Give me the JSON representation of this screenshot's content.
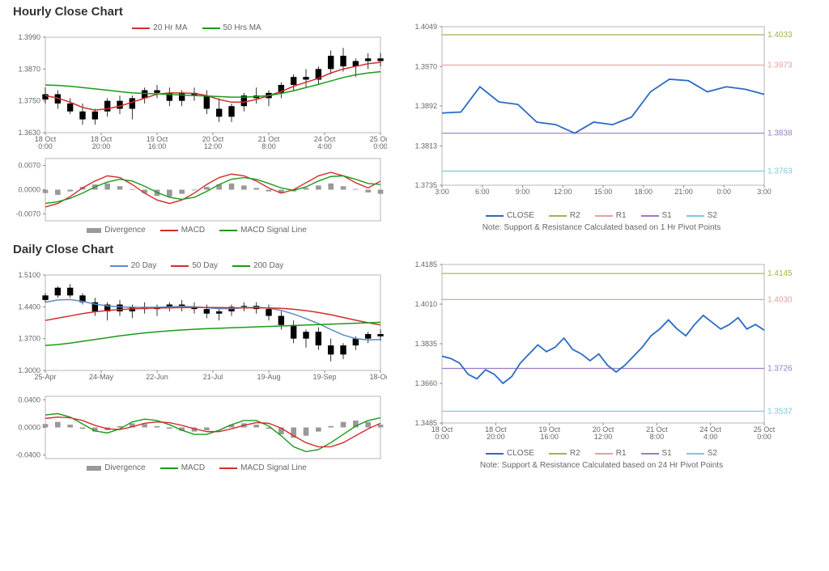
{
  "hourly": {
    "title": "Hourly Close Chart",
    "price": {
      "type": "candlestick+line",
      "legend": [
        {
          "label": "20 Hr MA",
          "color": "#d22d2d"
        },
        {
          "label": "50 Hrs MA",
          "color": "#1a9b1a"
        }
      ],
      "ylim": [
        1.363,
        1.399
      ],
      "yticks": [
        1.363,
        1.375,
        1.387,
        1.399
      ],
      "xticks": [
        "18 Oct\n0:00",
        "18 Oct\n20:00",
        "19 Oct\n16:00",
        "20 Oct\n12:00",
        "21 Oct\n8:00",
        "24 Oct\n4:00",
        "25 Oct\n0:00"
      ],
      "candles": [
        {
          "x": 0,
          "o": 1.3755,
          "h": 1.38,
          "l": 1.374,
          "c": 1.3775
        },
        {
          "x": 1,
          "o": 1.3775,
          "h": 1.379,
          "l": 1.372,
          "c": 1.374
        },
        {
          "x": 2,
          "o": 1.374,
          "h": 1.376,
          "l": 1.37,
          "c": 1.371
        },
        {
          "x": 3,
          "o": 1.371,
          "h": 1.374,
          "l": 1.366,
          "c": 1.368
        },
        {
          "x": 4,
          "o": 1.368,
          "h": 1.372,
          "l": 1.366,
          "c": 1.371
        },
        {
          "x": 5,
          "o": 1.371,
          "h": 1.376,
          "l": 1.369,
          "c": 1.375
        },
        {
          "x": 6,
          "o": 1.375,
          "h": 1.377,
          "l": 1.37,
          "c": 1.372
        },
        {
          "x": 7,
          "o": 1.372,
          "h": 1.377,
          "l": 1.368,
          "c": 1.376
        },
        {
          "x": 8,
          "o": 1.376,
          "h": 1.38,
          "l": 1.374,
          "c": 1.379
        },
        {
          "x": 9,
          "o": 1.379,
          "h": 1.381,
          "l": 1.376,
          "c": 1.378
        },
        {
          "x": 10,
          "o": 1.378,
          "h": 1.38,
          "l": 1.373,
          "c": 1.375
        },
        {
          "x": 11,
          "o": 1.375,
          "h": 1.379,
          "l": 1.373,
          "c": 1.378
        },
        {
          "x": 12,
          "o": 1.378,
          "h": 1.38,
          "l": 1.375,
          "c": 1.377
        },
        {
          "x": 13,
          "o": 1.377,
          "h": 1.379,
          "l": 1.37,
          "c": 1.372
        },
        {
          "x": 14,
          "o": 1.372,
          "h": 1.376,
          "l": 1.367,
          "c": 1.369
        },
        {
          "x": 15,
          "o": 1.369,
          "h": 1.374,
          "l": 1.367,
          "c": 1.373
        },
        {
          "x": 16,
          "o": 1.373,
          "h": 1.378,
          "l": 1.371,
          "c": 1.377
        },
        {
          "x": 17,
          "o": 1.377,
          "h": 1.38,
          "l": 1.374,
          "c": 1.376
        },
        {
          "x": 18,
          "o": 1.376,
          "h": 1.379,
          "l": 1.373,
          "c": 1.378
        },
        {
          "x": 19,
          "o": 1.378,
          "h": 1.382,
          "l": 1.376,
          "c": 1.381
        },
        {
          "x": 20,
          "o": 1.381,
          "h": 1.385,
          "l": 1.379,
          "c": 1.384
        },
        {
          "x": 21,
          "o": 1.384,
          "h": 1.387,
          "l": 1.38,
          "c": 1.383
        },
        {
          "x": 22,
          "o": 1.383,
          "h": 1.388,
          "l": 1.381,
          "c": 1.387
        },
        {
          "x": 23,
          "o": 1.387,
          "h": 1.394,
          "l": 1.385,
          "c": 1.392
        },
        {
          "x": 24,
          "o": 1.392,
          "h": 1.395,
          "l": 1.386,
          "c": 1.388
        },
        {
          "x": 25,
          "o": 1.388,
          "h": 1.391,
          "l": 1.384,
          "c": 1.39
        },
        {
          "x": 26,
          "o": 1.39,
          "h": 1.393,
          "l": 1.387,
          "c": 1.391
        },
        {
          "x": 27,
          "o": 1.391,
          "h": 1.393,
          "l": 1.388,
          "c": 1.39
        }
      ],
      "ma20": [
        1.377,
        1.376,
        1.3745,
        1.3725,
        1.3715,
        1.372,
        1.373,
        1.3745,
        1.376,
        1.3775,
        1.378,
        1.378,
        1.3778,
        1.377,
        1.3755,
        1.3745,
        1.3745,
        1.3755,
        1.377,
        1.3785,
        1.3805,
        1.382,
        1.3835,
        1.3855,
        1.387,
        1.388,
        1.389,
        1.3895
      ],
      "ma50": [
        1.381,
        1.3808,
        1.3805,
        1.38,
        1.3795,
        1.379,
        1.3785,
        1.378,
        1.3778,
        1.3776,
        1.3774,
        1.3772,
        1.377,
        1.3768,
        1.3766,
        1.3764,
        1.3764,
        1.3766,
        1.377,
        1.3778,
        1.3788,
        1.38,
        1.3812,
        1.3825,
        1.3838,
        1.3848,
        1.3855,
        1.386
      ],
      "ma20_color": "#d22d2d",
      "ma50_color": "#1a9b1a",
      "candle_color": "#000000"
    },
    "macd": {
      "type": "macd",
      "legend": [
        {
          "label": "Divergence",
          "color": "#999999",
          "shape": "bar"
        },
        {
          "label": "MACD",
          "color": "#d22d2d",
          "shape": "line"
        },
        {
          "label": "MACD Signal Line",
          "color": "#1a9b1a",
          "shape": "line"
        }
      ],
      "ylim": [
        -0.009,
        0.009
      ],
      "yticks": [
        -0.007,
        0.0,
        0.007
      ],
      "divergence": [
        -0.001,
        -0.0015,
        -0.0005,
        0.0008,
        0.0015,
        0.0018,
        0.001,
        0.0002,
        -0.001,
        -0.0018,
        -0.002,
        -0.0012,
        -0.0002,
        0.0008,
        0.0015,
        0.0018,
        0.0012,
        0.0005,
        -0.0005,
        -0.001,
        -0.0005,
        0.0005,
        0.0012,
        0.0018,
        0.001,
        0.0002,
        -0.0008,
        -0.0012
      ],
      "macd": [
        -0.005,
        -0.004,
        -0.002,
        0.0005,
        0.0025,
        0.004,
        0.0035,
        0.0015,
        -0.001,
        -0.003,
        -0.004,
        -0.003,
        -0.001,
        0.0015,
        0.0035,
        0.0045,
        0.004,
        0.0025,
        0.0005,
        -0.001,
        0.0,
        0.002,
        0.004,
        0.005,
        0.004,
        0.002,
        0.0005,
        0.0025
      ],
      "signal": [
        -0.004,
        -0.0035,
        -0.0025,
        -0.001,
        0.0008,
        0.0022,
        0.003,
        0.0025,
        0.001,
        -0.0008,
        -0.0022,
        -0.0028,
        -0.0022,
        -0.0005,
        0.0015,
        0.003,
        0.0035,
        0.003,
        0.0018,
        0.0005,
        -0.0002,
        0.0008,
        0.0025,
        0.0038,
        0.004,
        0.003,
        0.0018,
        0.0015
      ],
      "bar_color": "#999999",
      "macd_color": "#d22d2d",
      "signal_color": "#1a9b1a"
    },
    "sr": {
      "type": "line+levels",
      "legend": [
        {
          "label": "CLOSE",
          "color": "#2a6bc4"
        },
        {
          "label": "R2",
          "color": "#9db54c"
        },
        {
          "label": "R1",
          "color": "#e6a0a0"
        },
        {
          "label": "S1",
          "color": "#9b7bc4"
        },
        {
          "label": "S2",
          "color": "#7cc9d9"
        }
      ],
      "ylim": [
        1.3735,
        1.4049
      ],
      "yticks": [
        1.3735,
        1.3813,
        1.3892,
        1.397,
        1.4049
      ],
      "xticks": [
        "3:00",
        "6:00",
        "9:00",
        "12:00",
        "15:00",
        "18:00",
        "21:00",
        "0:00",
        "3:00"
      ],
      "levels": {
        "R2": 1.4033,
        "R1": 1.3973,
        "S1": 1.3838,
        "S2": 1.3763
      },
      "level_colors": {
        "R2": "#9db54c",
        "R1": "#e6a0a0",
        "S1": "#9b7bc4",
        "S2": "#7cc9d9"
      },
      "close": [
        1.3878,
        1.388,
        1.393,
        1.39,
        1.3895,
        1.386,
        1.3855,
        1.3838,
        1.386,
        1.3855,
        1.387,
        1.392,
        1.3945,
        1.3942,
        1.392,
        1.393,
        1.3925,
        1.3915
      ],
      "close_color": "#2a6bc4",
      "note": "Note: Support & Resistance Calculated based on 1 Hr Pivot Points"
    }
  },
  "daily": {
    "title": "Daily Close Chart",
    "price": {
      "type": "candlestick+line",
      "legend": [
        {
          "label": "20 Day",
          "color": "#5a8bc4"
        },
        {
          "label": "50 Day",
          "color": "#d22d2d"
        },
        {
          "label": "200 Day",
          "color": "#1a9b1a"
        }
      ],
      "ylim": [
        1.3,
        1.51
      ],
      "yticks": [
        1.3,
        1.37,
        1.44,
        1.51
      ],
      "xticks": [
        "25-Apr",
        "24-May",
        "22-Jun",
        "21-Jul",
        "19-Aug",
        "19-Sep",
        "18-Oct"
      ],
      "candles": [
        {
          "x": 0,
          "o": 1.455,
          "h": 1.47,
          "l": 1.45,
          "c": 1.465
        },
        {
          "x": 1,
          "o": 1.465,
          "h": 1.485,
          "l": 1.46,
          "c": 1.482
        },
        {
          "x": 2,
          "o": 1.482,
          "h": 1.49,
          "l": 1.46,
          "c": 1.465
        },
        {
          "x": 3,
          "o": 1.465,
          "h": 1.47,
          "l": 1.445,
          "c": 1.45
        },
        {
          "x": 4,
          "o": 1.45,
          "h": 1.46,
          "l": 1.42,
          "c": 1.43
        },
        {
          "x": 5,
          "o": 1.43,
          "h": 1.45,
          "l": 1.41,
          "c": 1.445
        },
        {
          "x": 6,
          "o": 1.445,
          "h": 1.455,
          "l": 1.42,
          "c": 1.43
        },
        {
          "x": 7,
          "o": 1.43,
          "h": 1.445,
          "l": 1.415,
          "c": 1.44
        },
        {
          "x": 8,
          "o": 1.44,
          "h": 1.45,
          "l": 1.425,
          "c": 1.435
        },
        {
          "x": 9,
          "o": 1.435,
          "h": 1.445,
          "l": 1.42,
          "c": 1.44
        },
        {
          "x": 10,
          "o": 1.44,
          "h": 1.45,
          "l": 1.43,
          "c": 1.445
        },
        {
          "x": 11,
          "o": 1.445,
          "h": 1.455,
          "l": 1.43,
          "c": 1.44
        },
        {
          "x": 12,
          "o": 1.44,
          "h": 1.45,
          "l": 1.425,
          "c": 1.435
        },
        {
          "x": 13,
          "o": 1.435,
          "h": 1.445,
          "l": 1.415,
          "c": 1.425
        },
        {
          "x": 14,
          "o": 1.425,
          "h": 1.435,
          "l": 1.41,
          "c": 1.43
        },
        {
          "x": 15,
          "o": 1.43,
          "h": 1.445,
          "l": 1.42,
          "c": 1.44
        },
        {
          "x": 16,
          "o": 1.44,
          "h": 1.45,
          "l": 1.43,
          "c": 1.442
        },
        {
          "x": 17,
          "o": 1.442,
          "h": 1.45,
          "l": 1.425,
          "c": 1.435
        },
        {
          "x": 18,
          "o": 1.435,
          "h": 1.445,
          "l": 1.41,
          "c": 1.42
        },
        {
          "x": 19,
          "o": 1.42,
          "h": 1.43,
          "l": 1.39,
          "c": 1.4
        },
        {
          "x": 20,
          "o": 1.4,
          "h": 1.41,
          "l": 1.36,
          "c": 1.37
        },
        {
          "x": 21,
          "o": 1.37,
          "h": 1.39,
          "l": 1.35,
          "c": 1.385
        },
        {
          "x": 22,
          "o": 1.385,
          "h": 1.395,
          "l": 1.345,
          "c": 1.355
        },
        {
          "x": 23,
          "o": 1.355,
          "h": 1.37,
          "l": 1.32,
          "c": 1.335
        },
        {
          "x": 24,
          "o": 1.335,
          "h": 1.36,
          "l": 1.325,
          "c": 1.355
        },
        {
          "x": 25,
          "o": 1.355,
          "h": 1.375,
          "l": 1.345,
          "c": 1.37
        },
        {
          "x": 26,
          "o": 1.37,
          "h": 1.385,
          "l": 1.36,
          "c": 1.38
        },
        {
          "x": 27,
          "o": 1.38,
          "h": 1.39,
          "l": 1.365,
          "c": 1.375
        }
      ],
      "ma20": [
        1.45,
        1.455,
        1.456,
        1.452,
        1.446,
        1.442,
        1.44,
        1.439,
        1.4385,
        1.439,
        1.44,
        1.441,
        1.44,
        1.438,
        1.436,
        1.436,
        1.438,
        1.439,
        1.437,
        1.432,
        1.424,
        1.414,
        1.403,
        1.39,
        1.378,
        1.37,
        1.367,
        1.368
      ],
      "ma50": [
        1.41,
        1.415,
        1.42,
        1.425,
        1.429,
        1.432,
        1.434,
        1.4355,
        1.4365,
        1.4372,
        1.4378,
        1.4382,
        1.4385,
        1.4385,
        1.4383,
        1.438,
        1.4378,
        1.4378,
        1.4375,
        1.4365,
        1.4345,
        1.4315,
        1.4275,
        1.4225,
        1.4165,
        1.4105,
        1.405,
        1.4
      ],
      "ma200": [
        1.355,
        1.357,
        1.36,
        1.364,
        1.368,
        1.372,
        1.376,
        1.3795,
        1.3825,
        1.385,
        1.3872,
        1.389,
        1.3905,
        1.3918,
        1.3928,
        1.3938,
        1.3948,
        1.3958,
        1.3968,
        1.3978,
        1.3988,
        1.3998,
        1.4008,
        1.4018,
        1.4028,
        1.4038,
        1.4048,
        1.4058
      ],
      "ma20_color": "#5a8bc4",
      "ma50_color": "#d22d2d",
      "ma200_color": "#1a9b1a",
      "candle_color": "#000000"
    },
    "macd": {
      "type": "macd",
      "legend": [
        {
          "label": "Divergence",
          "color": "#999999",
          "shape": "bar"
        },
        {
          "label": "MACD",
          "color": "#1a9b1a",
          "shape": "line"
        },
        {
          "label": "MACD Signal Line",
          "color": "#d22d2d",
          "shape": "line"
        }
      ],
      "ylim": [
        -0.045,
        0.045
      ],
      "yticks": [
        -0.04,
        0.0,
        0.04
      ],
      "divergence": [
        0.005,
        0.008,
        0.004,
        -0.002,
        -0.006,
        -0.004,
        0.002,
        0.006,
        0.005,
        0.002,
        -0.002,
        -0.005,
        -0.006,
        -0.004,
        0.0,
        0.004,
        0.006,
        0.004,
        -0.002,
        -0.01,
        -0.015,
        -0.012,
        -0.006,
        0.002,
        0.008,
        0.01,
        0.008,
        0.004
      ],
      "macd": [
        0.018,
        0.02,
        0.015,
        0.005,
        -0.005,
        -0.008,
        -0.002,
        0.008,
        0.012,
        0.01,
        0.004,
        -0.004,
        -0.01,
        -0.01,
        -0.004,
        0.004,
        0.01,
        0.01,
        0.002,
        -0.012,
        -0.028,
        -0.035,
        -0.032,
        -0.022,
        -0.01,
        0.002,
        0.01,
        0.014
      ],
      "signal": [
        0.013,
        0.015,
        0.014,
        0.01,
        0.003,
        -0.002,
        -0.003,
        0.001,
        0.006,
        0.008,
        0.007,
        0.003,
        -0.002,
        -0.006,
        -0.006,
        -0.002,
        0.003,
        0.007,
        0.006,
        -0.001,
        -0.012,
        -0.022,
        -0.028,
        -0.028,
        -0.022,
        -0.012,
        -0.002,
        0.006
      ],
      "bar_color": "#999999",
      "macd_color": "#1a9b1a",
      "signal_color": "#d22d2d"
    },
    "sr": {
      "type": "line+levels",
      "legend": [
        {
          "label": "CLOSE",
          "color": "#2a6bc4"
        },
        {
          "label": "R2",
          "color": "#9db54c"
        },
        {
          "label": "R1",
          "color": "#e6a0a0"
        },
        {
          "label": "S1",
          "color": "#9b7bc4"
        },
        {
          "label": "S2",
          "color": "#7cc9d9"
        }
      ],
      "ylim": [
        1.3485,
        1.4185
      ],
      "yticks": [
        1.3485,
        1.366,
        1.3835,
        1.401,
        1.4185
      ],
      "xticks": [
        "18 Oct\n0:00",
        "18 Oct\n20:00",
        "19 Oct\n16:00",
        "20 Oct\n12:00",
        "21 Oct\n8:00",
        "24 Oct\n4:00",
        "25 Oct\n0:00"
      ],
      "levels": {
        "R2": 1.4145,
        "R1": 1.403,
        "S1": 1.3726,
        "S2": 1.3537
      },
      "level_colors": {
        "R2": "#9db54c",
        "R1": "#e6a0a0",
        "S1": "#9b7bc4",
        "S2": "#7cc9d9"
      },
      "close": [
        1.378,
        1.377,
        1.375,
        1.37,
        1.368,
        1.372,
        1.37,
        1.366,
        1.369,
        1.375,
        1.379,
        1.383,
        1.38,
        1.382,
        1.386,
        1.381,
        1.379,
        1.376,
        1.379,
        1.374,
        1.371,
        1.374,
        1.378,
        1.382,
        1.387,
        1.39,
        1.394,
        1.39,
        1.387,
        1.392,
        1.396,
        1.393,
        1.39,
        1.392,
        1.395,
        1.39,
        1.392,
        1.3895
      ],
      "close_color": "#2a6bc4",
      "note": "Note: Support & Resistance Calculated based on 24 Hr Pivot Points"
    }
  },
  "plot_style": {
    "axis_color": "#888888",
    "grid_color": "#dddddd",
    "tick_font": 9,
    "background": "#ffffff"
  }
}
